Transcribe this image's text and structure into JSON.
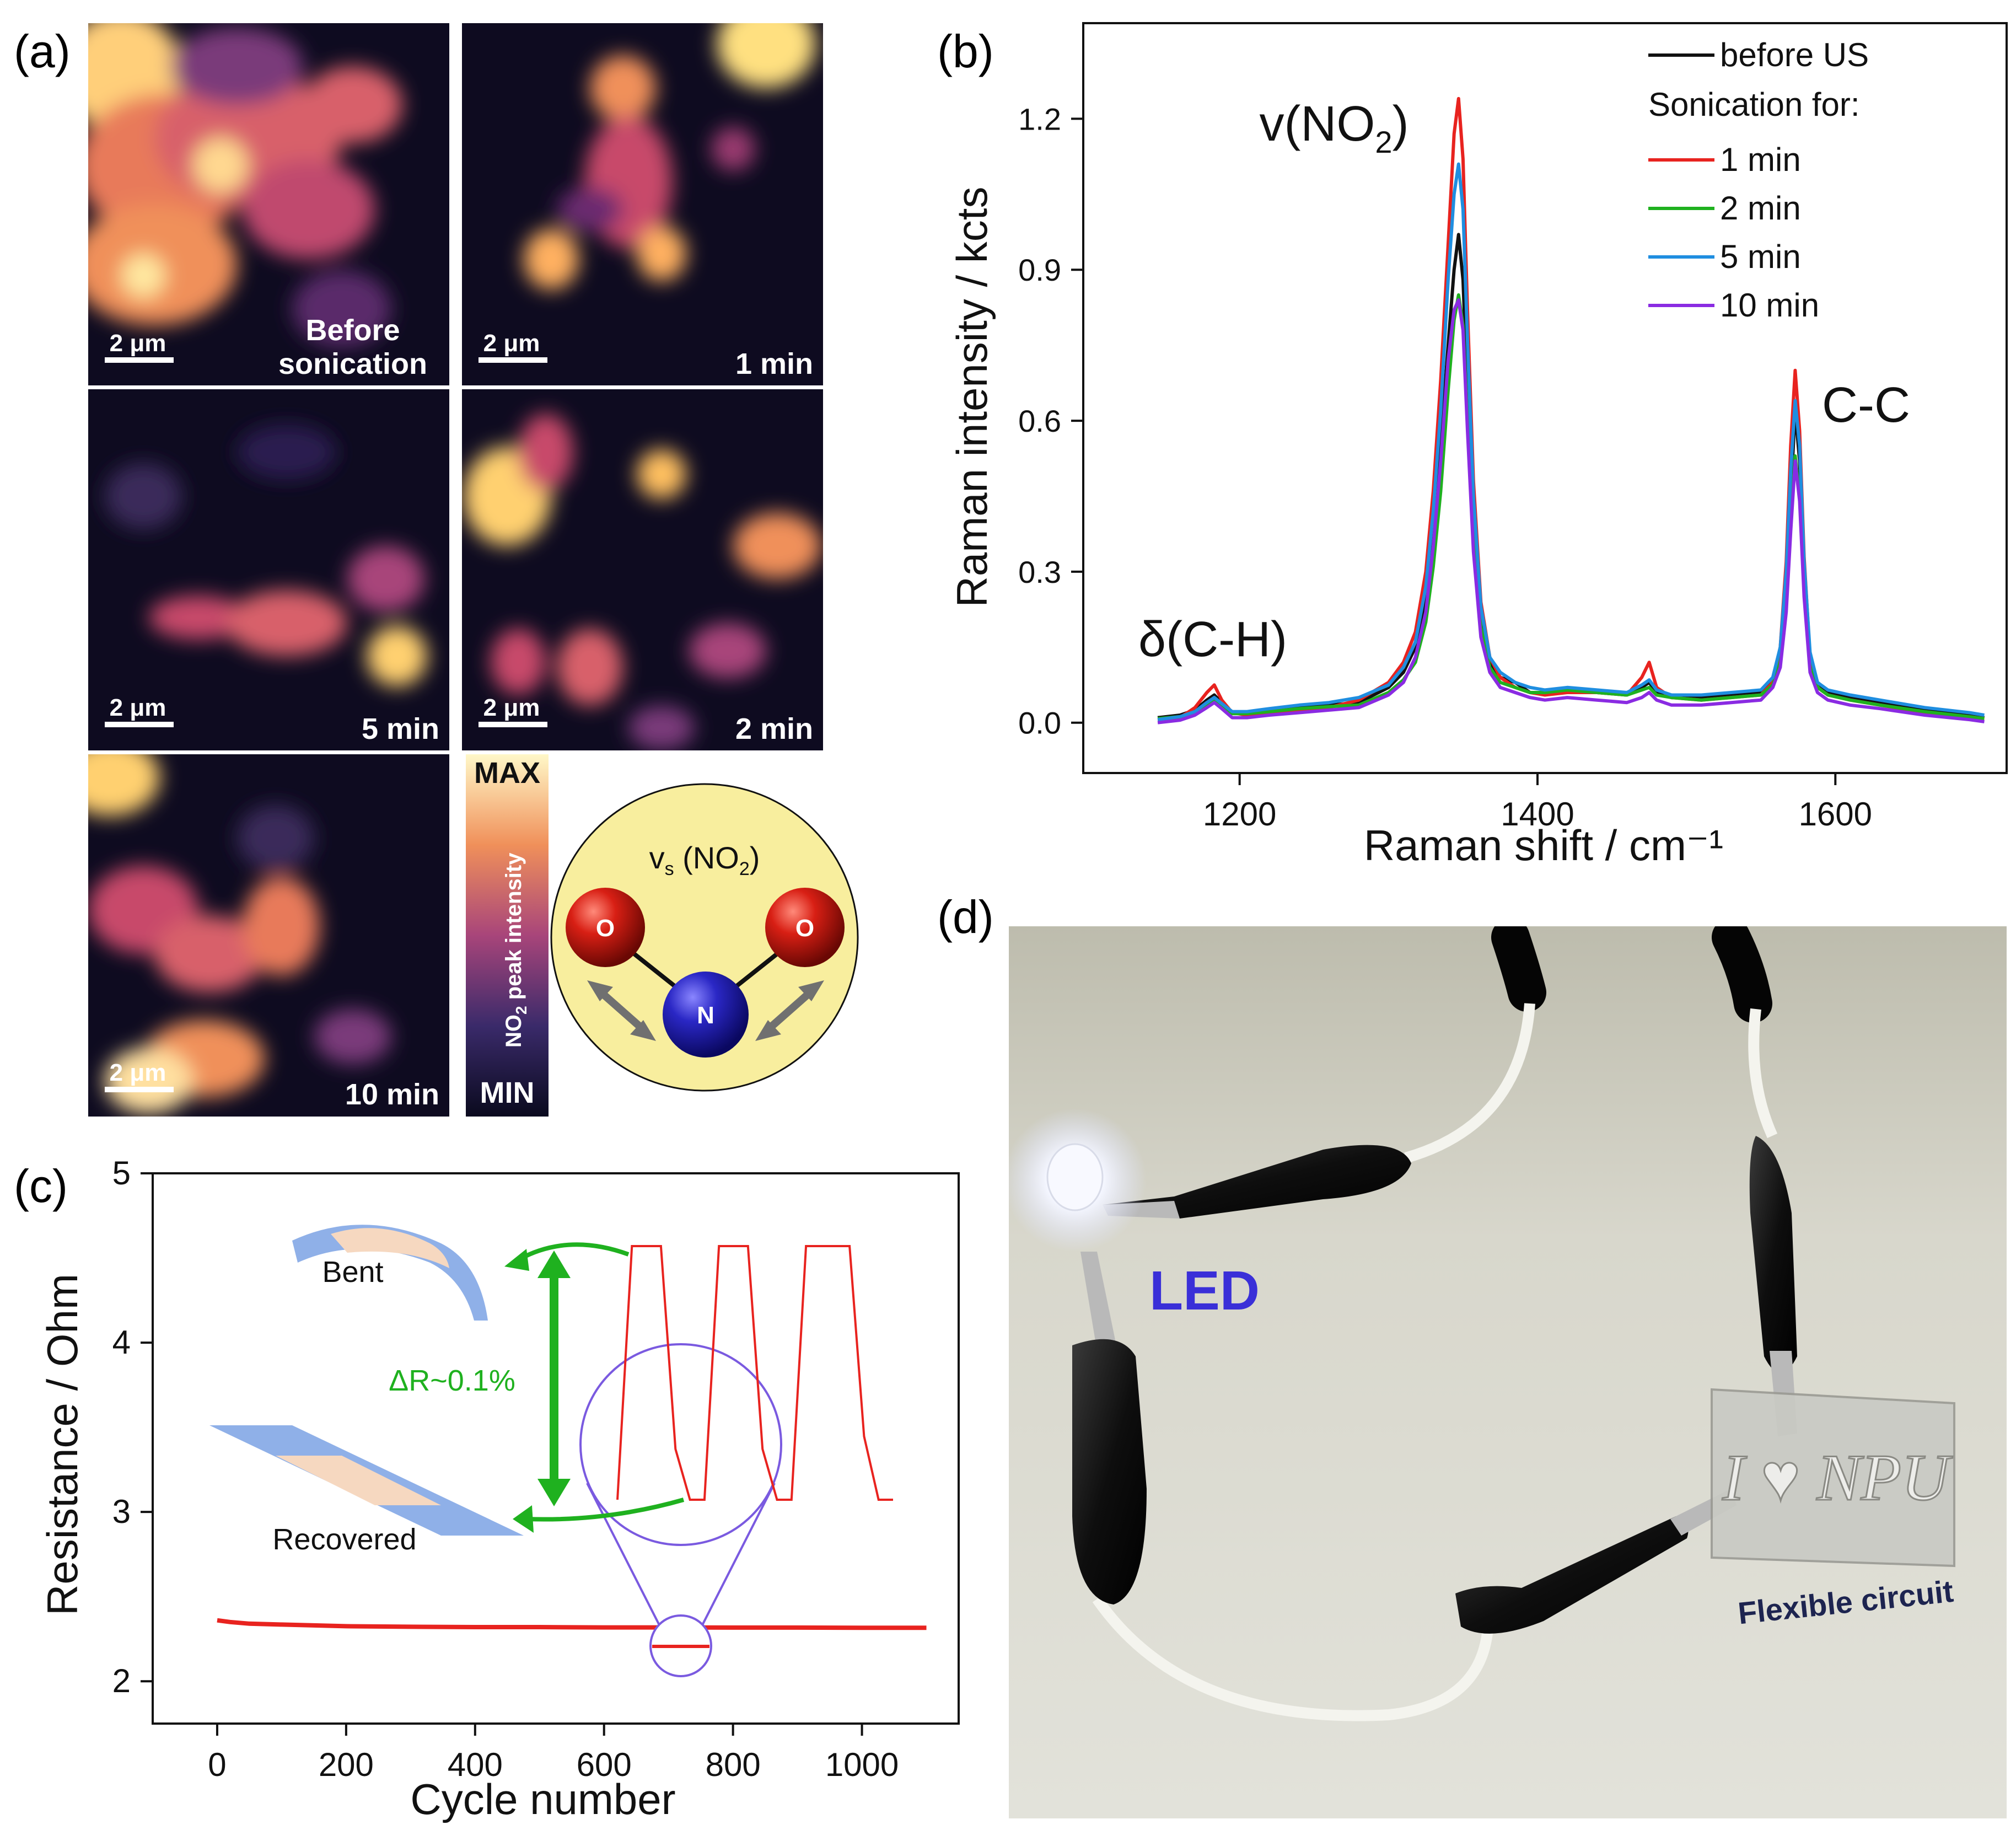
{
  "panel_labels": {
    "a": "(a)",
    "b": "(b)",
    "c": "(c)",
    "d": "(d)"
  },
  "panel_a": {
    "maps": [
      {
        "title": "Before sonication",
        "title_lines": [
          "Before",
          "sonication"
        ],
        "scale": "2 μm"
      },
      {
        "title": "1 min",
        "title_lines": [
          "1 min"
        ],
        "scale": "2 μm"
      },
      {
        "title": "5 min",
        "title_lines": [
          "5 min"
        ],
        "scale": "2 μm"
      },
      {
        "title": "2 min",
        "title_lines": [
          "2 min"
        ],
        "scale": "2 μm"
      },
      {
        "title": "10 min",
        "title_lines": [
          "10 min"
        ],
        "scale": "2 μm"
      }
    ],
    "colorbar": {
      "max": "MAX",
      "min": "MIN",
      "label_pre": "NO",
      "label_sub": "2",
      "label_post": " peak intensity"
    },
    "molecule": {
      "title_pre": "v",
      "title_sub1": "s",
      "title_mid": " (NO",
      "title_sub2": "2",
      "title_post": ")",
      "atom_o": "O",
      "atom_n": "N"
    },
    "colors": {
      "cmap_low": "#0e0b20",
      "cmap_mid": "#a8457a",
      "cmap_high": "#fff4b0",
      "molecule_bg": "#f8ee9e",
      "oxygen": "#c8170f",
      "nitrogen": "#2a27b5"
    }
  },
  "chart_data": [
    {
      "id": "b",
      "type": "line",
      "title": "",
      "xlabel": "Raman shift / cm⁻¹",
      "ylabel": "Raman intensity / kcts",
      "xlim": [
        1095,
        1715
      ],
      "ylim": [
        -0.1,
        1.39
      ],
      "xticks": [
        1200,
        1400,
        1600
      ],
      "yticks": [
        0.0,
        0.3,
        0.6,
        0.9,
        1.2
      ],
      "ytick_labels": [
        "0.0",
        "0.3",
        "0.6",
        "0.9",
        "1.2"
      ],
      "grid": false,
      "legend_position": "top-right",
      "legend_header": "Sonication for:",
      "annotations": [
        {
          "text": "v(NO",
          "sub": "2",
          "post": ")",
          "x": 1346,
          "y": 1.2
        },
        {
          "text": "C-C",
          "x": 1600,
          "y": 0.6
        },
        {
          "text": "δ(C-H)",
          "x": 1180,
          "y": 0.14
        }
      ],
      "x": [
        1145,
        1160,
        1170,
        1178,
        1183,
        1188,
        1195,
        1205,
        1220,
        1240,
        1260,
        1280,
        1300,
        1310,
        1318,
        1325,
        1330,
        1335,
        1340,
        1344,
        1347,
        1350,
        1353,
        1357,
        1362,
        1368,
        1375,
        1385,
        1395,
        1405,
        1420,
        1440,
        1460,
        1470,
        1475,
        1480,
        1490,
        1510,
        1530,
        1550,
        1558,
        1563,
        1567,
        1570,
        1573,
        1576,
        1579,
        1583,
        1588,
        1595,
        1610,
        1630,
        1660,
        1690,
        1700
      ],
      "series": [
        {
          "name": "before US",
          "color": "#111111",
          "values": [
            0.01,
            0.015,
            0.025,
            0.045,
            0.055,
            0.04,
            0.02,
            0.02,
            0.025,
            0.03,
            0.035,
            0.04,
            0.07,
            0.1,
            0.15,
            0.25,
            0.38,
            0.55,
            0.75,
            0.9,
            0.97,
            0.88,
            0.65,
            0.38,
            0.2,
            0.12,
            0.09,
            0.08,
            0.06,
            0.06,
            0.065,
            0.06,
            0.055,
            0.07,
            0.08,
            0.06,
            0.05,
            0.05,
            0.055,
            0.06,
            0.08,
            0.13,
            0.26,
            0.45,
            0.62,
            0.52,
            0.3,
            0.13,
            0.08,
            0.06,
            0.05,
            0.04,
            0.025,
            0.015,
            0.01
          ]
        },
        {
          "name": "1 min",
          "color": "#e8231f",
          "values": [
            0.005,
            0.01,
            0.03,
            0.06,
            0.075,
            0.045,
            0.02,
            0.015,
            0.02,
            0.025,
            0.03,
            0.045,
            0.08,
            0.12,
            0.18,
            0.3,
            0.46,
            0.68,
            0.95,
            1.17,
            1.24,
            1.12,
            0.82,
            0.48,
            0.24,
            0.13,
            0.09,
            0.07,
            0.06,
            0.055,
            0.06,
            0.06,
            0.055,
            0.09,
            0.12,
            0.07,
            0.05,
            0.045,
            0.05,
            0.055,
            0.08,
            0.15,
            0.32,
            0.55,
            0.7,
            0.58,
            0.33,
            0.13,
            0.07,
            0.055,
            0.045,
            0.035,
            0.02,
            0.012,
            0.008
          ]
        },
        {
          "name": "2 min",
          "color": "#1fb11f",
          "values": [
            0.008,
            0.012,
            0.02,
            0.035,
            0.045,
            0.035,
            0.018,
            0.018,
            0.022,
            0.028,
            0.032,
            0.035,
            0.06,
            0.085,
            0.12,
            0.2,
            0.31,
            0.46,
            0.66,
            0.8,
            0.85,
            0.79,
            0.6,
            0.36,
            0.19,
            0.11,
            0.08,
            0.07,
            0.06,
            0.06,
            0.065,
            0.06,
            0.055,
            0.065,
            0.07,
            0.055,
            0.05,
            0.045,
            0.05,
            0.055,
            0.075,
            0.12,
            0.24,
            0.4,
            0.53,
            0.45,
            0.26,
            0.11,
            0.07,
            0.055,
            0.045,
            0.035,
            0.022,
            0.012,
            0.008
          ]
        },
        {
          "name": "5 min",
          "color": "#1f8ee0",
          "values": [
            0.006,
            0.012,
            0.022,
            0.04,
            0.05,
            0.038,
            0.022,
            0.022,
            0.028,
            0.035,
            0.04,
            0.05,
            0.075,
            0.11,
            0.16,
            0.27,
            0.42,
            0.62,
            0.88,
            1.05,
            1.11,
            1.02,
            0.76,
            0.45,
            0.23,
            0.13,
            0.1,
            0.08,
            0.07,
            0.065,
            0.07,
            0.065,
            0.06,
            0.075,
            0.085,
            0.065,
            0.055,
            0.055,
            0.06,
            0.065,
            0.09,
            0.15,
            0.3,
            0.5,
            0.64,
            0.55,
            0.32,
            0.14,
            0.08,
            0.065,
            0.055,
            0.045,
            0.03,
            0.02,
            0.015
          ]
        },
        {
          "name": "10 min",
          "color": "#8a2be2",
          "values": [
            0.0,
            0.005,
            0.015,
            0.03,
            0.04,
            0.028,
            0.01,
            0.01,
            0.015,
            0.02,
            0.025,
            0.03,
            0.055,
            0.08,
            0.13,
            0.22,
            0.35,
            0.52,
            0.72,
            0.82,
            0.84,
            0.78,
            0.58,
            0.34,
            0.17,
            0.1,
            0.07,
            0.06,
            0.05,
            0.045,
            0.05,
            0.045,
            0.04,
            0.05,
            0.06,
            0.045,
            0.035,
            0.035,
            0.04,
            0.045,
            0.07,
            0.11,
            0.22,
            0.38,
            0.52,
            0.44,
            0.25,
            0.1,
            0.06,
            0.045,
            0.035,
            0.028,
            0.015,
            0.006,
            0.002
          ]
        }
      ]
    },
    {
      "id": "c",
      "type": "line",
      "title": "",
      "xlabel": "Cycle number",
      "ylabel": "Resistance / Ohm",
      "xlim": [
        -100,
        1150
      ],
      "ylim": [
        1.75,
        5.0
      ],
      "xticks": [
        0,
        200,
        400,
        600,
        800,
        1000
      ],
      "yticks": [
        2,
        3,
        4,
        5
      ],
      "grid": false,
      "series": [
        {
          "name": "resistance",
          "color": "#e8231f",
          "x": [
            0,
            20,
            50,
            100,
            150,
            200,
            300,
            400,
            500,
            600,
            700,
            800,
            900,
            1000,
            1100
          ],
          "values": [
            2.36,
            2.35,
            2.34,
            2.335,
            2.33,
            2.325,
            2.322,
            2.32,
            2.32,
            2.318,
            2.318,
            2.317,
            2.317,
            2.316,
            2.316
          ]
        }
      ],
      "inset": {
        "type": "line",
        "description_labels": {
          "bent": "Bent",
          "recovered": "Recovered",
          "delta": "ΔR~0.1%"
        },
        "x": [
          0,
          1,
          2,
          3,
          4,
          5,
          6,
          7,
          8,
          9,
          10,
          11,
          12,
          13,
          14,
          15,
          16,
          17,
          18,
          19
        ],
        "values": [
          0,
          1,
          1,
          1,
          0.2,
          0,
          0,
          1,
          1,
          1,
          0.2,
          0,
          0,
          1,
          1,
          1,
          1,
          0.25,
          0,
          0
        ]
      }
    }
  ],
  "panel_d": {
    "led_label": "LED",
    "circuit_label": "Flexible circuit",
    "circuit_text": "I ♥ NPU",
    "colors": {
      "led_label": "#3a2fd8",
      "circuit_label": "#1d2450"
    }
  }
}
